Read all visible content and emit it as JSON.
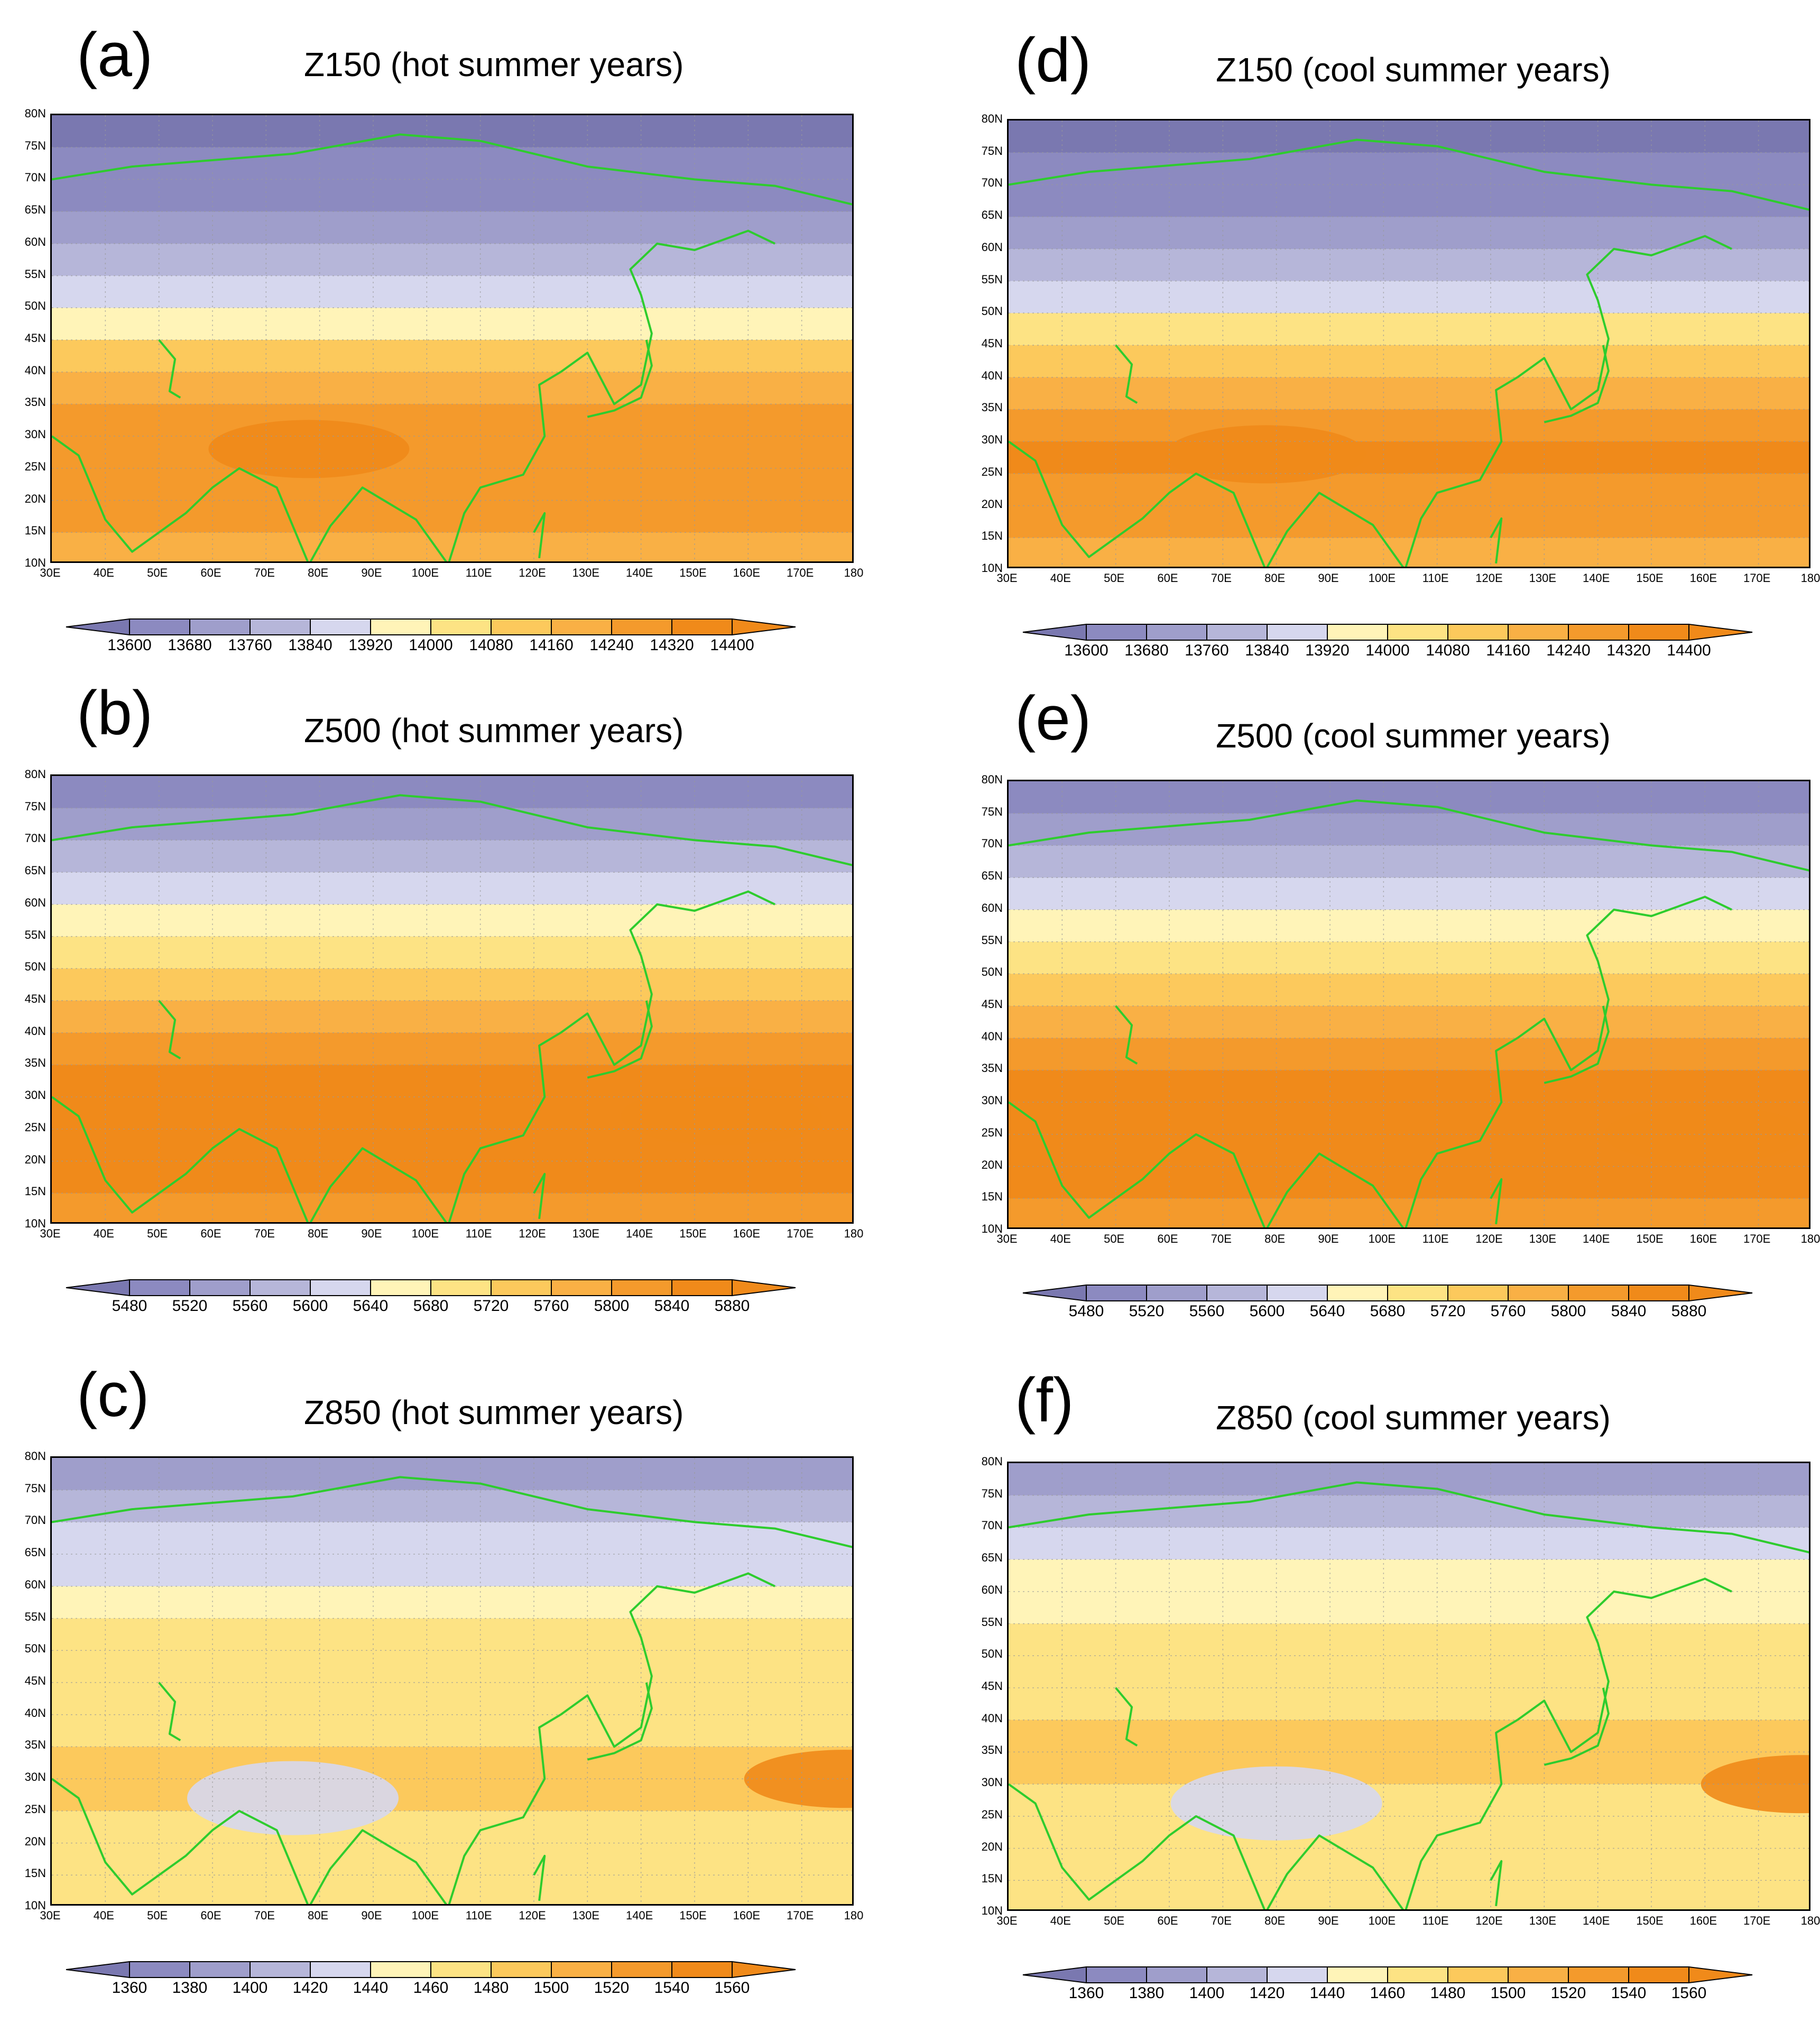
{
  "palette": [
    "#7a78b0",
    "#8c8ac0",
    "#9f9ecb",
    "#b6b6d9",
    "#d6d7ee",
    "#fff4b8",
    "#fde384",
    "#fcc95c",
    "#f9b045",
    "#f49a2c",
    "#f08a1a"
  ],
  "coastline_color": "#2ecc2e",
  "lat_ticks": [
    "80N",
    "75N",
    "70N",
    "65N",
    "60N",
    "55N",
    "50N",
    "45N",
    "40N",
    "35N",
    "30N",
    "25N",
    "20N",
    "15N",
    "10N"
  ],
  "lon_ticks": [
    "30E",
    "40E",
    "50E",
    "60E",
    "70E",
    "80E",
    "90E",
    "100E",
    "110E",
    "120E",
    "130E",
    "140E",
    "150E",
    "160E",
    "170E",
    "180"
  ],
  "panels": [
    {
      "label": "(a)",
      "title": "Z150 (hot summer years)",
      "colorbar": [
        "13600",
        "13680",
        "13760",
        "13840",
        "13920",
        "14000",
        "14080",
        "14160",
        "14240",
        "14320",
        "14400"
      ]
    },
    {
      "label": "(b)",
      "title": "Z500 (hot summer years)",
      "colorbar": [
        "5480",
        "5520",
        "5560",
        "5600",
        "5640",
        "5680",
        "5720",
        "5760",
        "5800",
        "5840",
        "5880"
      ]
    },
    {
      "label": "(c)",
      "title": "Z850 (hot summer years)",
      "colorbar": [
        "1360",
        "1380",
        "1400",
        "1420",
        "1440",
        "1460",
        "1480",
        "1500",
        "1520",
        "1540",
        "1560"
      ]
    },
    {
      "label": "(d)",
      "title": "Z150 (cool summer years)",
      "colorbar": [
        "13600",
        "13680",
        "13760",
        "13840",
        "13920",
        "14000",
        "14080",
        "14160",
        "14240",
        "14320",
        "14400"
      ]
    },
    {
      "label": "(e)",
      "title": "Z500 (cool summer years)",
      "colorbar": [
        "5480",
        "5520",
        "5560",
        "5600",
        "5640",
        "5680",
        "5720",
        "5760",
        "5800",
        "5840",
        "5880"
      ]
    },
    {
      "label": "(f)",
      "title": "Z850 (cool summer years)",
      "colorbar": [
        "1360",
        "1380",
        "1400",
        "1420",
        "1440",
        "1460",
        "1480",
        "1500",
        "1520",
        "1540",
        "1560"
      ]
    }
  ],
  "chart_data": [
    {
      "type": "heatmap",
      "variable": "Z150",
      "title": "Z150 (hot summer years)",
      "xlim": [
        30,
        180
      ],
      "ylim": [
        10,
        80
      ],
      "levels": [
        13600,
        13680,
        13760,
        13840,
        13920,
        14000,
        14080,
        14160,
        14240,
        14320,
        14400
      ],
      "zonal_profile": [
        [
          80,
          13560
        ],
        [
          75,
          13600
        ],
        [
          70,
          13640
        ],
        [
          65,
          13690
        ],
        [
          60,
          13740
        ],
        [
          55,
          13800
        ],
        [
          50,
          13900
        ],
        [
          45,
          14030
        ],
        [
          40,
          14130
        ],
        [
          35,
          14230
        ],
        [
          30,
          14310
        ],
        [
          25,
          14320
        ],
        [
          20,
          14280
        ],
        [
          15,
          14220
        ],
        [
          10,
          14180
        ]
      ],
      "max_center": {
        "lon": 78,
        "lat": 28,
        "value": 14400
      }
    },
    {
      "type": "heatmap",
      "variable": "Z500",
      "title": "Z500 (hot summer years)",
      "xlim": [
        30,
        180
      ],
      "ylim": [
        10,
        80
      ],
      "levels": [
        5480,
        5520,
        5560,
        5600,
        5640,
        5680,
        5720,
        5760,
        5800,
        5840,
        5880
      ],
      "zonal_profile": [
        [
          80,
          5470
        ],
        [
          75,
          5510
        ],
        [
          70,
          5550
        ],
        [
          65,
          5590
        ],
        [
          60,
          5630
        ],
        [
          55,
          5670
        ],
        [
          50,
          5710
        ],
        [
          45,
          5750
        ],
        [
          40,
          5790
        ],
        [
          35,
          5830
        ],
        [
          30,
          5850
        ],
        [
          25,
          5850
        ],
        [
          20,
          5840
        ],
        [
          15,
          5840
        ],
        [
          10,
          5830
        ]
      ],
      "max_center": {
        "lon": 155,
        "lat": 27,
        "value": 5880
      }
    },
    {
      "type": "heatmap",
      "variable": "Z850",
      "title": "Z850 (hot summer years)",
      "xlim": [
        30,
        180
      ],
      "ylim": [
        10,
        80
      ],
      "levels": [
        1360,
        1380,
        1400,
        1420,
        1440,
        1460,
        1480,
        1500,
        1520,
        1540,
        1560
      ],
      "zonal_profile": [
        [
          80,
          1385
        ],
        [
          75,
          1395
        ],
        [
          70,
          1415
        ],
        [
          65,
          1430
        ],
        [
          60,
          1445
        ],
        [
          55,
          1455
        ],
        [
          50,
          1465
        ],
        [
          45,
          1470
        ],
        [
          40,
          1475
        ],
        [
          35,
          1480
        ],
        [
          30,
          1480
        ],
        [
          25,
          1480
        ],
        [
          20,
          1475
        ],
        [
          15,
          1470
        ],
        [
          10,
          1465
        ]
      ],
      "max_center": {
        "lon": 178,
        "lat": 30,
        "value": 1560
      },
      "min_center": {
        "lon": 75,
        "lat": 27,
        "value": 1420
      }
    },
    {
      "type": "heatmap",
      "variable": "Z150",
      "title": "Z150 (cool summer years)",
      "xlim": [
        30,
        180
      ],
      "ylim": [
        10,
        80
      ],
      "levels": [
        13600,
        13680,
        13760,
        13840,
        13920,
        14000,
        14080,
        14160,
        14240,
        14320,
        14400
      ],
      "zonal_profile": [
        [
          80,
          13560
        ],
        [
          75,
          13600
        ],
        [
          70,
          13650
        ],
        [
          65,
          13700
        ],
        [
          60,
          13760
        ],
        [
          55,
          13830
        ],
        [
          50,
          13940
        ],
        [
          45,
          14060
        ],
        [
          40,
          14160
        ],
        [
          35,
          14250
        ],
        [
          30,
          14320
        ],
        [
          25,
          14320
        ],
        [
          20,
          14280
        ],
        [
          15,
          14220
        ],
        [
          10,
          14180
        ]
      ],
      "max_center": {
        "lon": 78,
        "lat": 28,
        "value": 14400
      }
    },
    {
      "type": "heatmap",
      "variable": "Z500",
      "title": "Z500 (cool summer years)",
      "xlim": [
        30,
        180
      ],
      "ylim": [
        10,
        80
      ],
      "levels": [
        5480,
        5520,
        5560,
        5600,
        5640,
        5680,
        5720,
        5760,
        5800,
        5840,
        5880
      ],
      "zonal_profile": [
        [
          80,
          5470
        ],
        [
          75,
          5510
        ],
        [
          70,
          5550
        ],
        [
          65,
          5600
        ],
        [
          60,
          5640
        ],
        [
          55,
          5680
        ],
        [
          50,
          5720
        ],
        [
          45,
          5760
        ],
        [
          40,
          5800
        ],
        [
          35,
          5830
        ],
        [
          30,
          5850
        ],
        [
          25,
          5850
        ],
        [
          20,
          5840
        ],
        [
          15,
          5840
        ],
        [
          10,
          5830
        ]
      ],
      "max_center": {
        "lon": 160,
        "lat": 25,
        "value": 5880
      }
    },
    {
      "type": "heatmap",
      "variable": "Z850",
      "title": "Z850 (cool summer years)",
      "xlim": [
        30,
        180
      ],
      "ylim": [
        10,
        80
      ],
      "levels": [
        1360,
        1380,
        1400,
        1420,
        1440,
        1460,
        1480,
        1500,
        1520,
        1540,
        1560
      ],
      "zonal_profile": [
        [
          80,
          1390
        ],
        [
          75,
          1400
        ],
        [
          70,
          1420
        ],
        [
          65,
          1435
        ],
        [
          60,
          1450
        ],
        [
          55,
          1465
        ],
        [
          50,
          1470
        ],
        [
          45,
          1475
        ],
        [
          40,
          1480
        ],
        [
          35,
          1482
        ],
        [
          30,
          1480
        ],
        [
          25,
          1478
        ],
        [
          20,
          1475
        ],
        [
          15,
          1470
        ],
        [
          10,
          1468
        ]
      ],
      "max_center": {
        "lon": 178,
        "lat": 30,
        "value": 1560
      },
      "min_center": {
        "lon": 80,
        "lat": 27,
        "value": 1420
      }
    }
  ]
}
